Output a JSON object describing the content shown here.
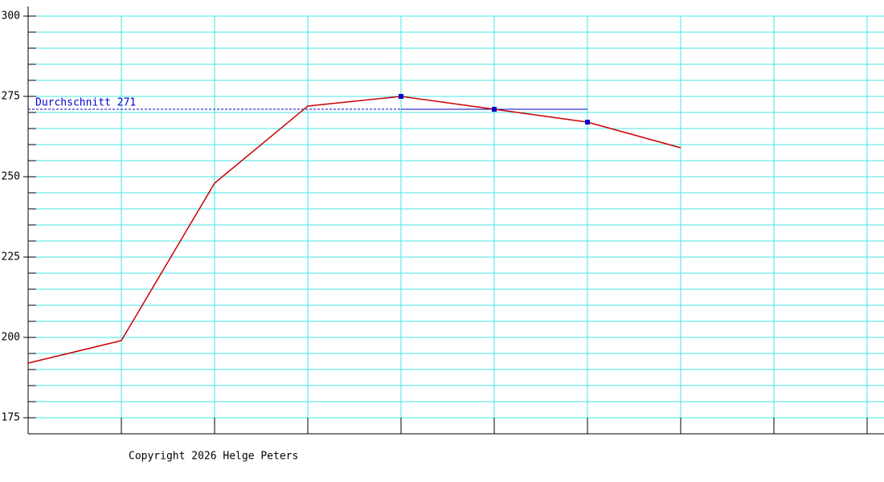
{
  "chart_data": {
    "type": "line",
    "categories": [
      null,
      null,
      null,
      null,
      null,
      null,
      null,
      null,
      null,
      null
    ],
    "series": [
      {
        "color": "#cc0000",
        "values": [
          192,
          199,
          248,
          272,
          275,
          271,
          267,
          259,
          null,
          null
        ]
      }
    ],
    "ylim": [
      170,
      303
    ],
    "yticks": [
      175,
      200,
      225,
      250,
      275,
      300
    ],
    "grid_yticks": [
      175,
      180,
      185,
      190,
      195,
      200,
      205,
      210,
      215,
      220,
      225,
      230,
      235,
      240,
      245,
      250,
      255,
      260,
      265,
      270,
      275,
      280,
      285,
      290,
      295,
      300
    ],
    "grid": true,
    "grid_color": "#44e4e4",
    "average": {
      "label": "Durchschnitt 271",
      "value": 271,
      "color": "#0000cc"
    },
    "marked_points": [
      4,
      5,
      6
    ],
    "footer": "Copyright 2026 Helge Peters"
  }
}
